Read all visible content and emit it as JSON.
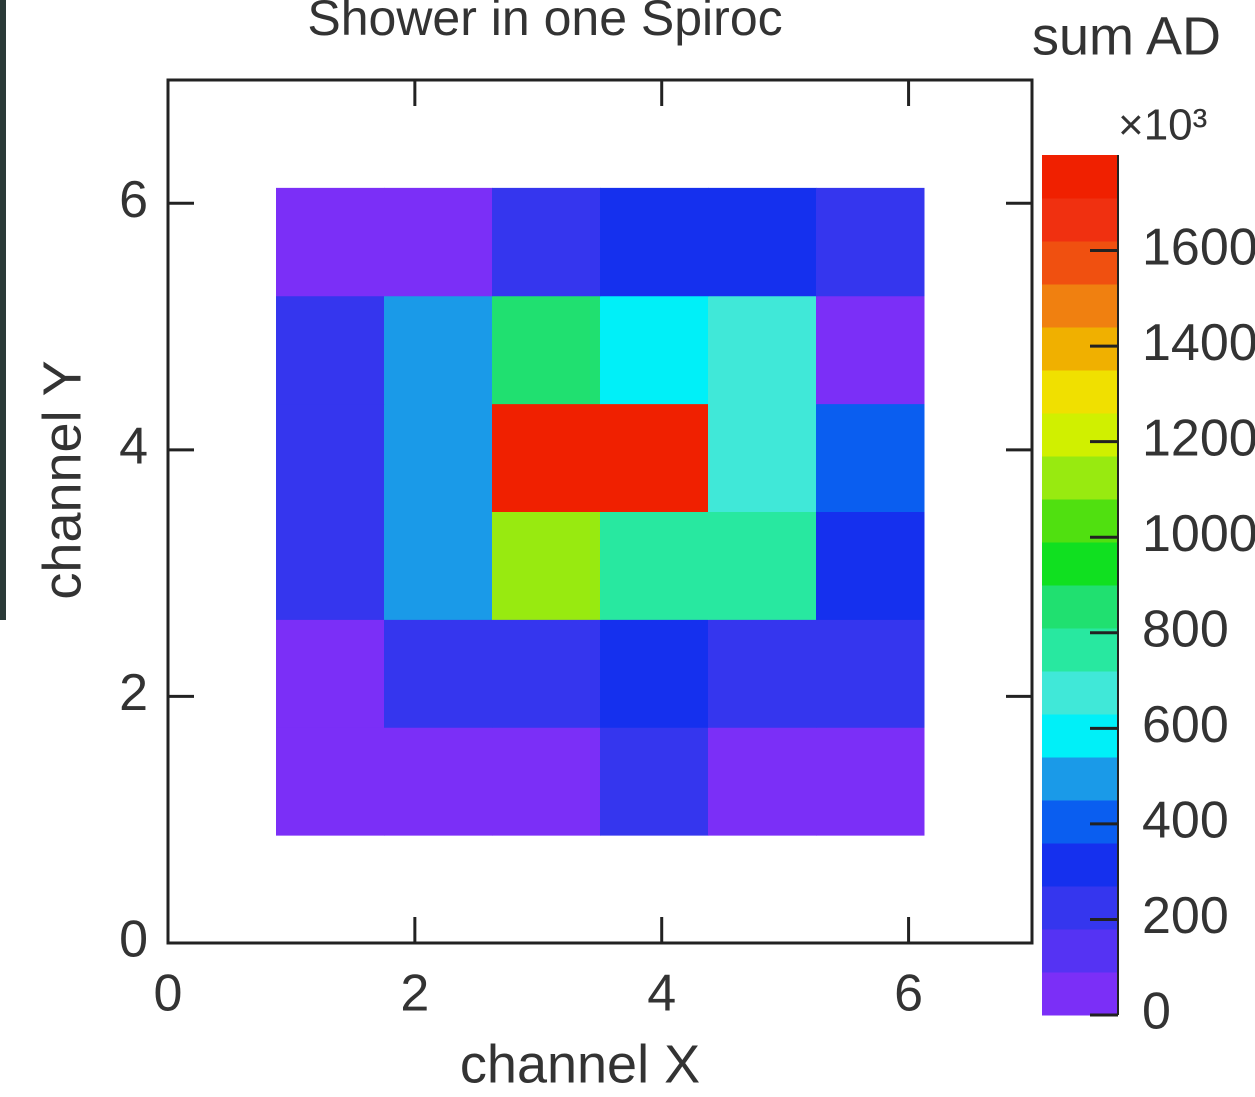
{
  "chart_data": {
    "type": "heatmap",
    "title": "Shower in one Spiroc",
    "x_label": "channel X",
    "y_label": "channel Y",
    "colorbar_title": "sum AD",
    "colorbar_multiplier": "×10³",
    "xlim": [
      0,
      7
    ],
    "ylim": [
      0,
      7
    ],
    "xticks": [
      0,
      2,
      4,
      6
    ],
    "yticks": [
      0,
      2,
      4,
      6
    ],
    "xedges": [
      0.875,
      1.75,
      2.625,
      3.5,
      4.375,
      5.25,
      6.125
    ],
    "yedges": [
      0.875,
      1.75,
      2.625,
      3.5,
      4.375,
      5.25,
      6.125
    ],
    "z": [
      [
        50,
        50,
        50,
        180,
        50,
        50
      ],
      [
        50,
        180,
        180,
        300,
        200,
        200
      ],
      [
        220,
        500,
        1100,
        780,
        780,
        300
      ],
      [
        220,
        500,
        1750,
        1750,
        680,
        400
      ],
      [
        220,
        500,
        850,
        600,
        680,
        50
      ],
      [
        50,
        50,
        180,
        300,
        300,
        180
      ]
    ],
    "zlim": [
      0,
      1800
    ],
    "zticks": [
      0,
      200,
      400,
      600,
      800,
      1000,
      1200,
      1400,
      1600
    ],
    "palette": [
      "#7b2ff7",
      "#5533f3",
      "#3536ee",
      "#1530ee",
      "#0a5ef0",
      "#1a9ae8",
      "#00f0f8",
      "#40e8d8",
      "#28e8a0",
      "#20e070",
      "#10e020",
      "#50e010",
      "#98ea10",
      "#d0f000",
      "#f0e000",
      "#f0b000",
      "#f08010",
      "#f05010",
      "#f03010",
      "#f02000"
    ]
  }
}
